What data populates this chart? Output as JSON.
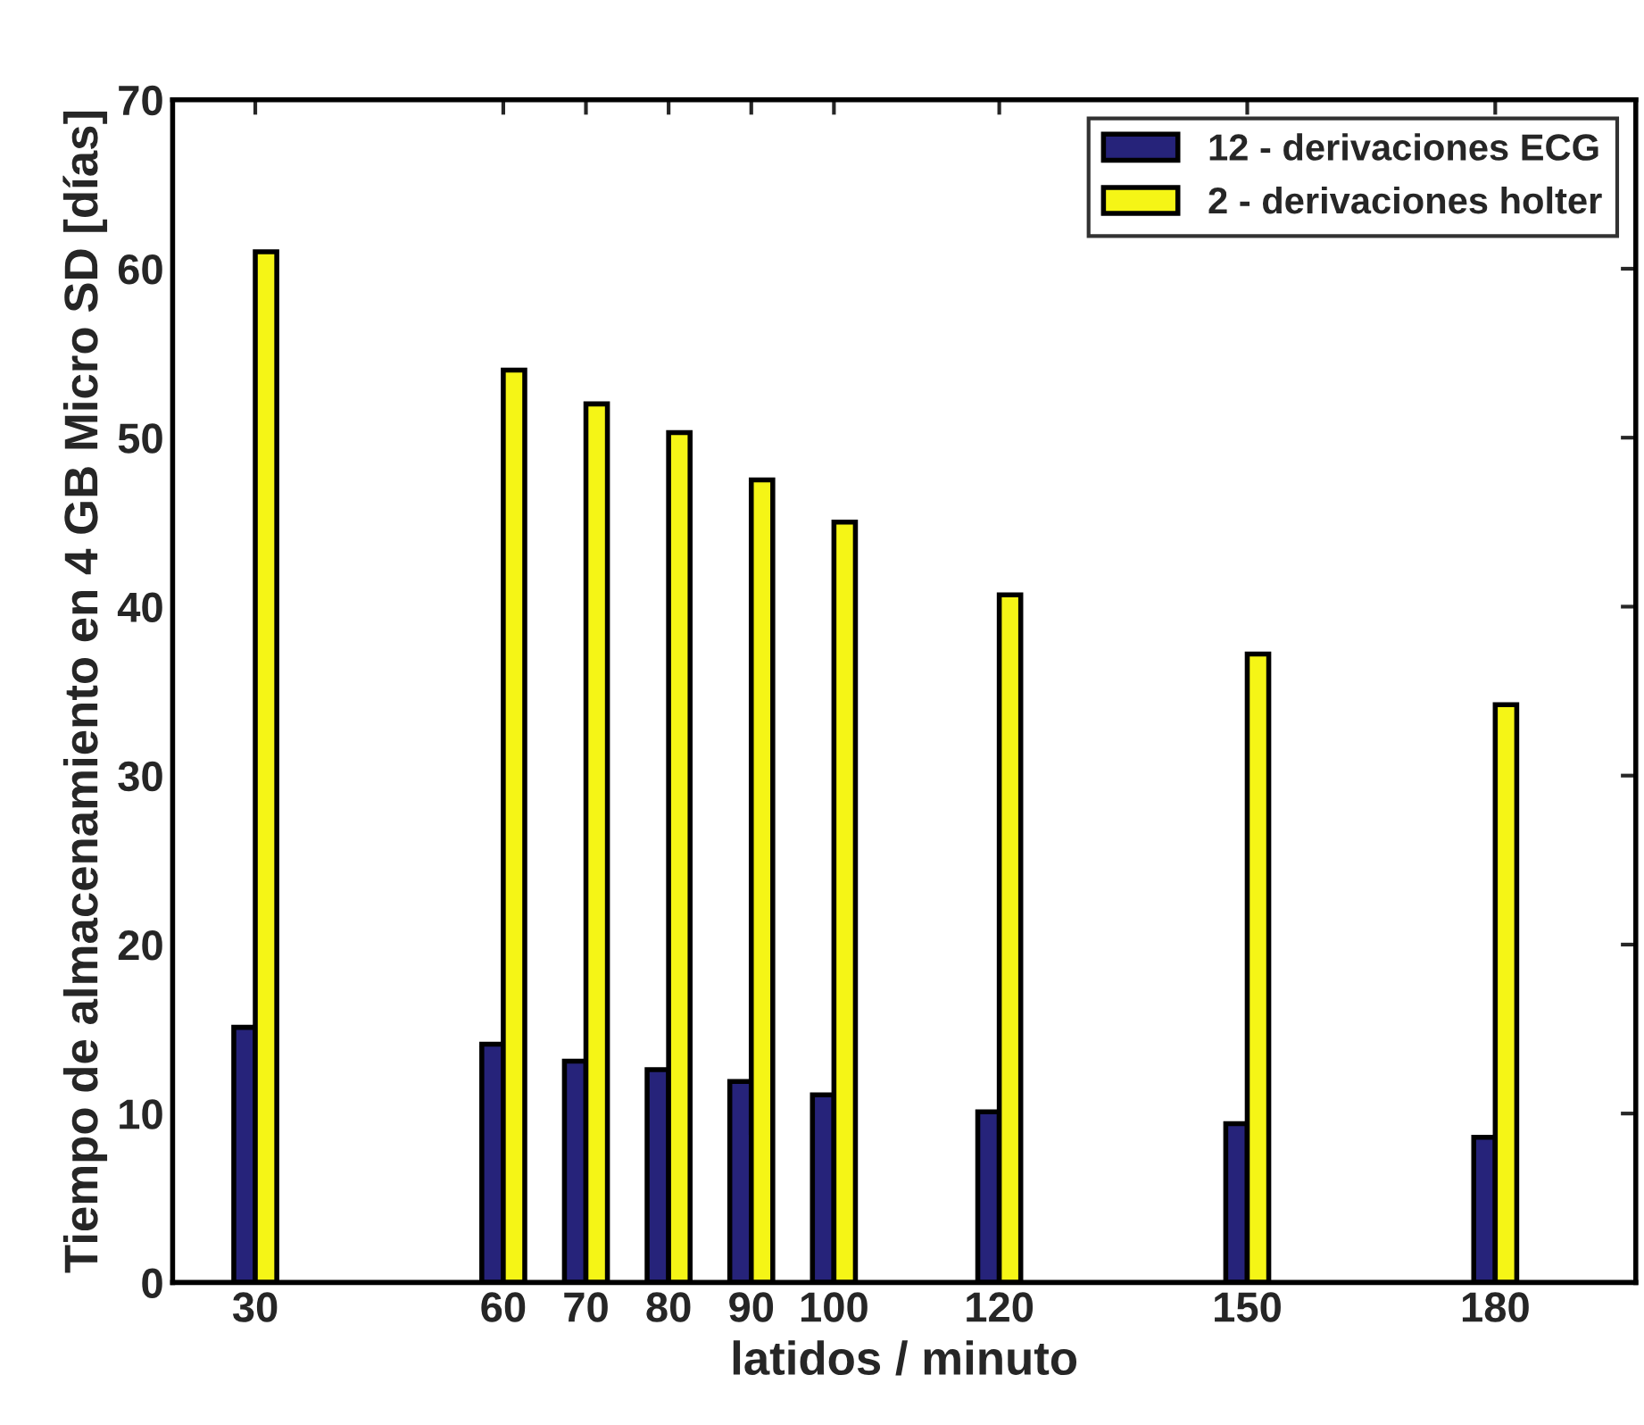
{
  "chart_data": {
    "type": "bar",
    "xlabel": "latidos / minuto",
    "ylabel": "Tiempo de almacenamiento en 4 GB Micro SD [días]",
    "x": [
      30,
      60,
      70,
      80,
      90,
      100,
      120,
      150,
      180
    ],
    "series": [
      {
        "name": "12 - derivaciones ECG",
        "color": "#26237a",
        "values": [
          15.1,
          14.1,
          13.1,
          12.6,
          11.9,
          11.1,
          10.1,
          9.4,
          8.6
        ]
      },
      {
        "name": "2 - derivaciones holter",
        "color": "#f5f516",
        "values": [
          61,
          54,
          52,
          50.3,
          47.5,
          45,
          40.7,
          37.2,
          34.2
        ]
      }
    ],
    "xlim": [
      20,
      197
    ],
    "xticks": [
      30,
      60,
      70,
      80,
      90,
      100,
      120,
      150,
      180
    ],
    "ylim": [
      0,
      70
    ],
    "yticks": [
      0,
      10,
      20,
      30,
      40,
      50,
      60,
      70
    ],
    "grid": false,
    "legend": "top right"
  }
}
